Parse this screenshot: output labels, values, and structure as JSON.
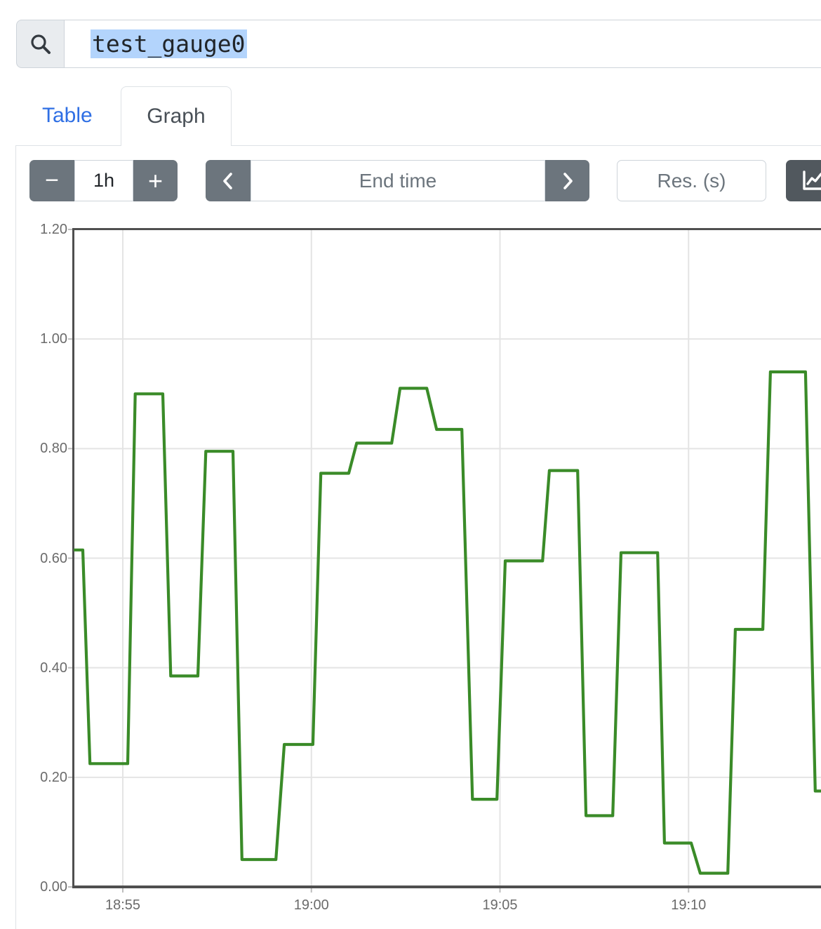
{
  "search": {
    "query": "test_gauge0"
  },
  "tabs": {
    "table_label": "Table",
    "graph_label": "Graph"
  },
  "controls": {
    "range_decrease_label": "−",
    "range_value": "1h",
    "range_increase_label": "+",
    "end_time_placeholder": "End time",
    "resolution_placeholder": "Res. (s)"
  },
  "colors": {
    "accent_blue": "#2f6fe4",
    "button_gray": "#6c757d",
    "button_dark": "#51585e",
    "selection_highlight": "#b3d4fc",
    "series_green": "#3a8b28",
    "chart_border": "#4f4f4f",
    "grid": "#e4e4e4",
    "axis_text": "#6b6b6b"
  },
  "chart_data": {
    "type": "line",
    "title": "",
    "style": "step-line gauge series",
    "grid": true,
    "legend": "none",
    "x_unit": "minutes_after_18:00",
    "x_axis": {
      "t_start": 53.7,
      "t_end": 73.6,
      "ticks": [
        {
          "t": 55,
          "label": "18:55"
        },
        {
          "t": 60,
          "label": "19:00"
        },
        {
          "t": 65,
          "label": "19:05"
        },
        {
          "t": 70,
          "label": "19:10"
        }
      ]
    },
    "y_axis": {
      "min": 0,
      "max": 1.2,
      "ticks": [
        {
          "v": 0.0,
          "label": "0.00"
        },
        {
          "v": 0.2,
          "label": "0.20"
        },
        {
          "v": 0.4,
          "label": "0.40"
        },
        {
          "v": 0.6,
          "label": "0.60"
        },
        {
          "v": 0.8,
          "label": "0.80"
        },
        {
          "v": 1.0,
          "label": "1.00"
        },
        {
          "v": 1.2,
          "label": "1.20"
        }
      ]
    },
    "series": [
      {
        "name": "test_gauge0",
        "color": "#3a8b28",
        "points": [
          [
            53.7,
            0.615
          ],
          [
            53.94,
            0.615
          ],
          [
            54.13,
            0.225
          ],
          [
            55.13,
            0.225
          ],
          [
            55.33,
            0.9
          ],
          [
            56.06,
            0.9
          ],
          [
            56.27,
            0.385
          ],
          [
            56.99,
            0.385
          ],
          [
            57.2,
            0.795
          ],
          [
            57.92,
            0.795
          ],
          [
            58.16,
            0.05
          ],
          [
            59.06,
            0.05
          ],
          [
            59.28,
            0.26
          ],
          [
            60.04,
            0.26
          ],
          [
            60.25,
            0.755
          ],
          [
            60.99,
            0.755
          ],
          [
            61.2,
            0.81
          ],
          [
            62.13,
            0.81
          ],
          [
            62.35,
            0.91
          ],
          [
            63.06,
            0.91
          ],
          [
            63.32,
            0.835
          ],
          [
            63.99,
            0.835
          ],
          [
            64.27,
            0.16
          ],
          [
            64.92,
            0.16
          ],
          [
            65.14,
            0.595
          ],
          [
            66.13,
            0.595
          ],
          [
            66.31,
            0.76
          ],
          [
            67.06,
            0.76
          ],
          [
            67.28,
            0.13
          ],
          [
            67.99,
            0.13
          ],
          [
            68.21,
            0.61
          ],
          [
            69.18,
            0.61
          ],
          [
            69.36,
            0.08
          ],
          [
            70.07,
            0.08
          ],
          [
            70.31,
            0.025
          ],
          [
            71.04,
            0.025
          ],
          [
            71.24,
            0.47
          ],
          [
            71.97,
            0.47
          ],
          [
            72.17,
            0.94
          ],
          [
            73.1,
            0.94
          ],
          [
            73.36,
            0.175
          ],
          [
            74.0,
            0.175
          ]
        ]
      }
    ]
  }
}
